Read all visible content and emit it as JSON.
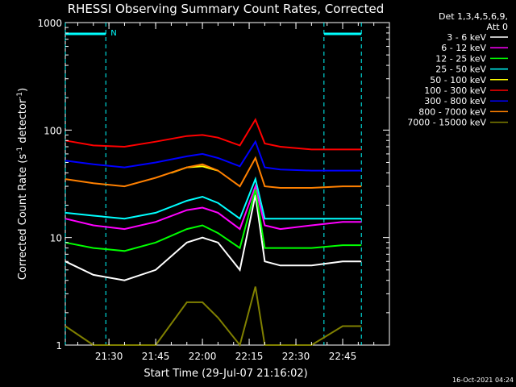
{
  "chart_data": {
    "type": "line",
    "title": "RHESSI Observing Summary Count Rates, Corrected",
    "xlabel": "Start Time (29-Jul-07 21:16:02)",
    "ylabel_main": "Corrected Count Rate (s",
    "ylabel_sup1": "-1",
    "ylabel_mid": " detector",
    "ylabel_sup2": "-1",
    "ylabel_end": ")",
    "y_scale": "log",
    "ylim": [
      1,
      1000
    ],
    "xlim": [
      "21:16",
      "23:00"
    ],
    "x_ticks": [
      "21:30",
      "21:45",
      "22:00",
      "22:15",
      "22:30",
      "22:45"
    ],
    "y_ticks": [
      "1",
      "10",
      "100",
      "1000"
    ],
    "legend_header": [
      "Det 1,3,4,5,6,9,",
      "Att 0"
    ],
    "legend_position": "right",
    "night_marker_label": "N",
    "night_intervals": [
      [
        "21:16",
        "21:29"
      ],
      [
        "22:39",
        "22:51"
      ]
    ],
    "timestamp": "16-Oct-2021 04:24",
    "series": [
      {
        "name": "3 - 6 keV",
        "color": "#ffffff",
        "x": [
          "21:16",
          "21:25",
          "21:35",
          "21:45",
          "21:55",
          "22:00",
          "22:05",
          "22:12",
          "22:17",
          "22:20",
          "22:25",
          "22:35",
          "22:45",
          "22:51"
        ],
        "y": [
          6,
          4.5,
          4,
          5,
          9,
          10,
          9,
          5,
          25,
          6,
          5.5,
          5.5,
          6,
          6
        ]
      },
      {
        "name": "6 - 12 keV",
        "color": "#ff00ff",
        "x": [
          "21:16",
          "21:25",
          "21:35",
          "21:45",
          "21:55",
          "22:00",
          "22:05",
          "22:12",
          "22:17",
          "22:20",
          "22:25",
          "22:35",
          "22:45",
          "22:51"
        ],
        "y": [
          15,
          13,
          12,
          14,
          18,
          19,
          17,
          12,
          30,
          13,
          12,
          13,
          14,
          14
        ]
      },
      {
        "name": "12 - 25 keV",
        "color": "#00ff00",
        "x": [
          "21:16",
          "21:25",
          "21:35",
          "21:45",
          "21:55",
          "22:00",
          "22:05",
          "22:12",
          "22:17",
          "22:20",
          "22:25",
          "22:35",
          "22:45",
          "22:51"
        ],
        "y": [
          9,
          8,
          7.5,
          9,
          12,
          13,
          11,
          8,
          28,
          8,
          8,
          8,
          8.5,
          8.5
        ]
      },
      {
        "name": "25 - 50 keV",
        "color": "#00ffff",
        "x": [
          "21:16",
          "21:25",
          "21:35",
          "21:45",
          "21:55",
          "22:00",
          "22:05",
          "22:12",
          "22:17",
          "22:20",
          "22:25",
          "22:35",
          "22:45",
          "22:51"
        ],
        "y": [
          17,
          16,
          15,
          17,
          22,
          24,
          21,
          15,
          35,
          15,
          15,
          15,
          15,
          15
        ]
      },
      {
        "name": "50 - 100 keV",
        "color": "#ffff00",
        "x": [
          "21:50",
          "21:55",
          "22:00",
          "22:05"
        ],
        "y": [
          40,
          45,
          46,
          42
        ]
      },
      {
        "name": "100 - 300 keV",
        "color": "#ff0000",
        "x": [
          "21:16",
          "21:25",
          "21:35",
          "21:45",
          "21:55",
          "22:00",
          "22:05",
          "22:12",
          "22:17",
          "22:20",
          "22:25",
          "22:35",
          "22:45",
          "22:51"
        ],
        "y": [
          80,
          72,
          70,
          78,
          88,
          90,
          85,
          72,
          125,
          75,
          70,
          66,
          66,
          66
        ]
      },
      {
        "name": "300 - 800 keV",
        "color": "#0000ff",
        "x": [
          "21:16",
          "21:25",
          "21:35",
          "21:45",
          "21:55",
          "22:00",
          "22:05",
          "22:12",
          "22:17",
          "22:20",
          "22:25",
          "22:35",
          "22:45",
          "22:51"
        ],
        "y": [
          52,
          48,
          45,
          50,
          57,
          60,
          55,
          46,
          78,
          45,
          43,
          42,
          42,
          42
        ]
      },
      {
        "name": "800 - 7000 keV",
        "color": "#ff8000",
        "x": [
          "21:16",
          "21:25",
          "21:35",
          "21:45",
          "21:55",
          "22:00",
          "22:05",
          "22:12",
          "22:17",
          "22:20",
          "22:25",
          "22:35",
          "22:45",
          "22:51"
        ],
        "y": [
          35,
          32,
          30,
          36,
          45,
          48,
          42,
          30,
          55,
          30,
          29,
          29,
          30,
          30
        ]
      },
      {
        "name": "7000 - 15000 keV",
        "color": "#808000",
        "x": [
          "21:16",
          "21:25",
          "21:35",
          "21:45",
          "21:55",
          "22:00",
          "22:05",
          "22:12",
          "22:17",
          "22:20",
          "22:25",
          "22:35",
          "22:45",
          "22:51"
        ],
        "y": [
          1.5,
          1,
          1,
          1,
          2.5,
          2.5,
          1.8,
          1,
          3.5,
          1,
          1,
          1,
          1.5,
          1.5
        ]
      }
    ]
  }
}
